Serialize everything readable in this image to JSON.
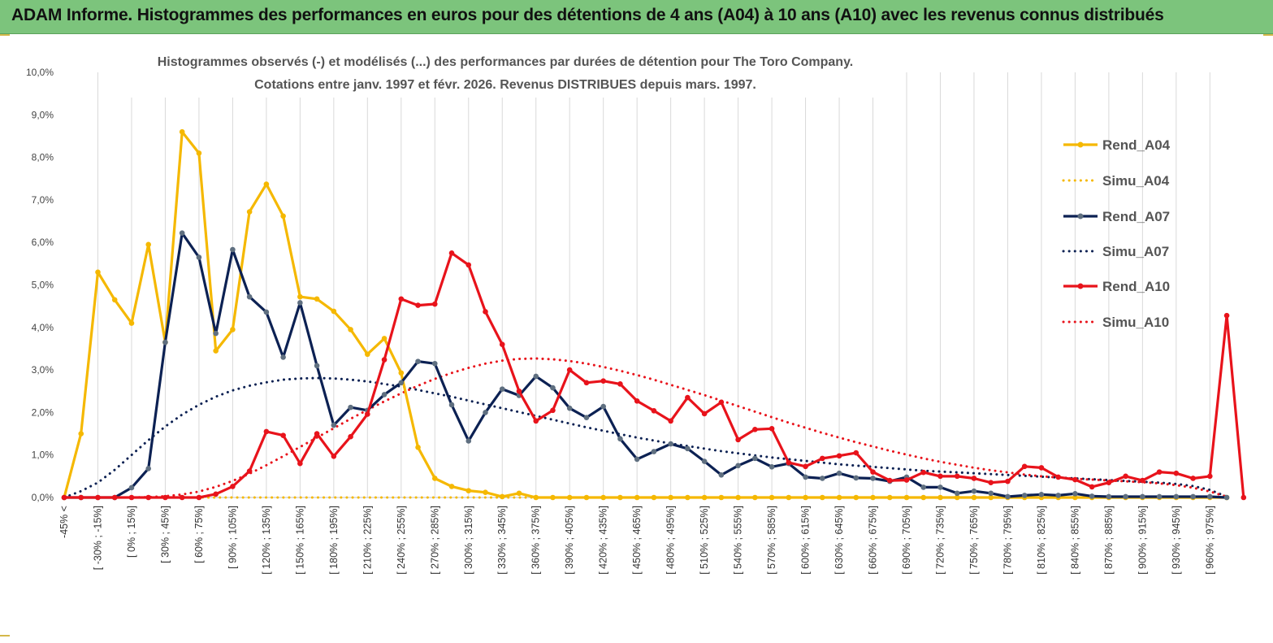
{
  "banner": {
    "title": "ADAM Informe. Histogrammes des performances en euros pour des détentions de 4 ans (A04) à 10 ans (A10) avec les revenus connus distribués"
  },
  "colors": {
    "banner_bg": "#7cc47c",
    "A04": "#f5b800",
    "A07": "#0c2153",
    "A10": "#e8131b",
    "A07_markers": "#5f6f80"
  },
  "chart_data": {
    "type": "line",
    "title_lines": [
      "Histogrammes observés (-) et modélisés (...) des performances par durées de détention pour The Toro Company.",
      "Cotations entre janv. 1997 et févr. 2026. Revenus DISTRIBUES depuis mars. 1997."
    ],
    "ylim": [
      0,
      10
    ],
    "y_ticks": [
      "0,0%",
      "1,0%",
      "2,0%",
      "3,0%",
      "4,0%",
      "5,0%",
      "6,0%",
      "7,0%",
      "8,0%",
      "9,0%",
      "10,0%"
    ],
    "x_tick_labels": [
      "-45% <",
      "[ -30% ; -15%]",
      "[ 0% ; 15%]",
      "[ 30% ; 45%]",
      "[ 60% ; 75%]",
      "[ 90% ; 105%]",
      "[ 120% ; 135%]",
      "[ 150% ; 165%]",
      "[ 180% ; 195%]",
      "[ 210% ; 225%]",
      "[ 240% ; 255%]",
      "[ 270% ; 285%]",
      "[ 300% ; 315%]",
      "[ 330% ; 345%]",
      "[ 360% ; 375%]",
      "[ 390% ; 405%]",
      "[ 420% ; 435%]",
      "[ 450% ; 465%]",
      "[ 480% ; 495%]",
      "[ 510% ; 525%]",
      "[ 540% ; 555%]",
      "[ 570% ; 585%]",
      "[ 600% ; 615%]",
      "[ 630% ; 645%]",
      "[ 660% ; 675%]",
      "[ 690% ; 705%]",
      "[ 720% ; 735%]",
      "[ 750% ; 765%]",
      "[ 780% ; 795%]",
      "[ 810% ; 825%]",
      "[ 840% ; 855%]",
      "[ 870% ; 885%]",
      "[ 900% ; 915%]",
      "[ 930% ; 945%]",
      "[ 960% ; 975%]"
    ],
    "legend": [
      "Rend_A04",
      "Simu_A04",
      "Rend_A07",
      "Simu_A07",
      "Rend_A10",
      "Simu_A10"
    ],
    "legend_position": "right",
    "grid": "vertical",
    "series": [
      {
        "name": "Rend_A04",
        "style": "solid",
        "values": [
          0,
          1.5,
          5.3,
          4.65,
          4.1,
          5.95,
          3.65,
          8.6,
          8.1,
          3.45,
          3.95,
          6.72,
          7.37,
          6.62,
          4.72,
          4.67,
          4.38,
          3.95,
          3.37,
          3.74,
          2.93,
          1.18,
          0.45,
          0.26,
          0.16,
          0.12,
          0.02,
          0.1,
          0,
          0,
          0,
          0,
          0,
          0,
          0,
          0,
          0,
          0,
          0,
          0,
          0,
          0,
          0,
          0,
          0,
          0,
          0,
          0,
          0,
          0,
          0,
          0,
          0,
          0,
          0,
          0,
          0,
          0,
          0,
          0,
          0,
          0,
          0,
          0,
          0,
          0,
          0,
          0,
          0,
          0
        ]
      },
      {
        "name": "Simu_A04",
        "style": "dotted",
        "values": [
          0,
          0,
          0,
          0,
          0,
          0,
          0,
          0,
          0,
          0,
          0,
          0,
          0,
          0,
          0,
          0,
          0,
          0,
          0,
          0,
          0,
          0,
          0,
          0,
          0,
          0,
          0,
          0,
          0,
          0,
          0,
          0,
          0,
          0,
          0,
          0,
          0,
          0,
          0,
          0,
          0,
          0,
          0,
          0,
          0,
          0,
          0,
          0,
          0,
          0,
          0,
          0,
          0,
          0,
          0,
          0,
          0,
          0,
          0,
          0,
          0,
          0,
          0,
          0,
          0,
          0,
          0,
          0,
          0,
          0
        ]
      },
      {
        "name": "Rend_A07",
        "style": "solid",
        "values": [
          0,
          0,
          0,
          0,
          0.23,
          0.68,
          3.65,
          6.22,
          5.65,
          3.86,
          5.83,
          4.72,
          4.36,
          3.3,
          4.58,
          3.1,
          1.7,
          2.12,
          2.05,
          2.42,
          2.7,
          3.2,
          3.15,
          2.18,
          1.33,
          2.0,
          2.55,
          2.4,
          2.85,
          2.58,
          2.1,
          1.88,
          2.14,
          1.38,
          0.9,
          1.08,
          1.26,
          1.15,
          0.85,
          0.53,
          0.75,
          0.92,
          0.72,
          0.8,
          0.48,
          0.45,
          0.57,
          0.46,
          0.45,
          0.38,
          0.48,
          0.24,
          0.24,
          0.1,
          0.15,
          0.1,
          0.02,
          0.05,
          0.07,
          0.05,
          0.09,
          0.03,
          0.02,
          0.02,
          0.02,
          0.02,
          0.02,
          0.02,
          0.02,
          0
        ]
      },
      {
        "name": "Simu_A07",
        "style": "dotted",
        "values": [
          0,
          0.15,
          0.35,
          0.65,
          1.0,
          1.35,
          1.67,
          1.95,
          2.18,
          2.37,
          2.52,
          2.63,
          2.71,
          2.77,
          2.8,
          2.81,
          2.8,
          2.77,
          2.73,
          2.67,
          2.61,
          2.53,
          2.45,
          2.37,
          2.28,
          2.19,
          2.1,
          2.01,
          1.92,
          1.83,
          1.74,
          1.65,
          1.57,
          1.49,
          1.41,
          1.34,
          1.27,
          1.21,
          1.15,
          1.09,
          1.04,
          0.99,
          0.94,
          0.9,
          0.86,
          0.82,
          0.78,
          0.75,
          0.72,
          0.69,
          0.66,
          0.63,
          0.61,
          0.59,
          0.57,
          0.55,
          0.53,
          0.51,
          0.49,
          0.47,
          0.45,
          0.43,
          0.41,
          0.39,
          0.37,
          0.35,
          0.32,
          0.27,
          0.18,
          0.02
        ]
      },
      {
        "name": "Rend_A10",
        "style": "solid",
        "values": [
          0,
          0,
          0,
          0,
          0,
          0,
          0,
          0,
          0,
          0.08,
          0.26,
          0.62,
          1.55,
          1.46,
          0.8,
          1.5,
          0.97,
          1.43,
          1.96,
          3.24,
          4.67,
          4.52,
          4.55,
          5.75,
          5.47,
          4.37,
          3.6,
          2.5,
          1.8,
          2.05,
          3.0,
          2.7,
          2.74,
          2.67,
          2.27,
          2.04,
          1.8,
          2.35,
          1.97,
          2.24,
          1.36,
          1.6,
          1.62,
          0.82,
          0.73,
          0.92,
          0.98,
          1.05,
          0.6,
          0.4,
          0.41,
          0.59,
          0.5,
          0.5,
          0.45,
          0.35,
          0.38,
          0.73,
          0.7,
          0.48,
          0.42,
          0.25,
          0.35,
          0.5,
          0.4,
          0.6,
          0.57,
          0.45,
          0.5,
          4.28,
          0
        ]
      },
      {
        "name": "Simu_A10",
        "style": "dotted",
        "values": [
          0,
          0,
          0,
          0,
          0,
          0.01,
          0.03,
          0.07,
          0.14,
          0.25,
          0.39,
          0.56,
          0.76,
          0.97,
          1.19,
          1.41,
          1.63,
          1.85,
          2.06,
          2.26,
          2.45,
          2.63,
          2.79,
          2.93,
          3.05,
          3.15,
          3.22,
          3.26,
          3.27,
          3.25,
          3.21,
          3.15,
          3.07,
          2.98,
          2.88,
          2.77,
          2.65,
          2.53,
          2.41,
          2.28,
          2.15,
          2.02,
          1.89,
          1.76,
          1.64,
          1.52,
          1.41,
          1.3,
          1.2,
          1.1,
          1.01,
          0.92,
          0.84,
          0.77,
          0.7,
          0.64,
          0.59,
          0.54,
          0.5,
          0.47,
          0.44,
          0.42,
          0.4,
          0.38,
          0.36,
          0.33,
          0.29,
          0.23,
          0.14,
          0.02
        ]
      }
    ]
  }
}
